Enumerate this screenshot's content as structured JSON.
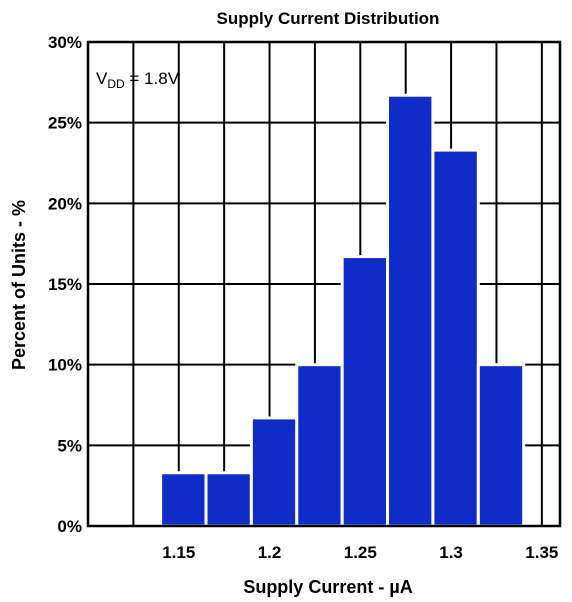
{
  "chart_data": {
    "type": "bar",
    "title": "Supply Current Distribution",
    "xlabel": "Supply Current - µA",
    "ylabel": "Percent of Units - %",
    "annotation": {
      "main": "V",
      "subscript": "DD",
      "rest": " = 1.8V"
    },
    "bins": [
      {
        "start": 1.14,
        "end": 1.165,
        "value": 3.3
      },
      {
        "start": 1.165,
        "end": 1.19,
        "value": 3.3
      },
      {
        "start": 1.19,
        "end": 1.215,
        "value": 6.7
      },
      {
        "start": 1.215,
        "end": 1.24,
        "value": 10.0
      },
      {
        "start": 1.24,
        "end": 1.265,
        "value": 16.7
      },
      {
        "start": 1.265,
        "end": 1.29,
        "value": 26.7
      },
      {
        "start": 1.29,
        "end": 1.315,
        "value": 23.3
      },
      {
        "start": 1.315,
        "end": 1.34,
        "value": 10.0
      }
    ],
    "x_ticks": [
      {
        "value": 1.15,
        "label": "1.15"
      },
      {
        "value": 1.2,
        "label": "1.2"
      },
      {
        "value": 1.25,
        "label": "1.25"
      },
      {
        "value": 1.3,
        "label": "1.3"
      },
      {
        "value": 1.35,
        "label": "1.35"
      }
    ],
    "y_ticks": [
      {
        "value": 0,
        "label": "0%"
      },
      {
        "value": 5,
        "label": "5%"
      },
      {
        "value": 10,
        "label": "10%"
      },
      {
        "value": 15,
        "label": "15%"
      },
      {
        "value": 20,
        "label": "20%"
      },
      {
        "value": 25,
        "label": "25%"
      },
      {
        "value": 30,
        "label": "30%"
      }
    ],
    "xlim": [
      1.1,
      1.36
    ],
    "ylim": [
      0,
      30
    ],
    "grid": true,
    "bar_color": "#0f2bc8"
  }
}
